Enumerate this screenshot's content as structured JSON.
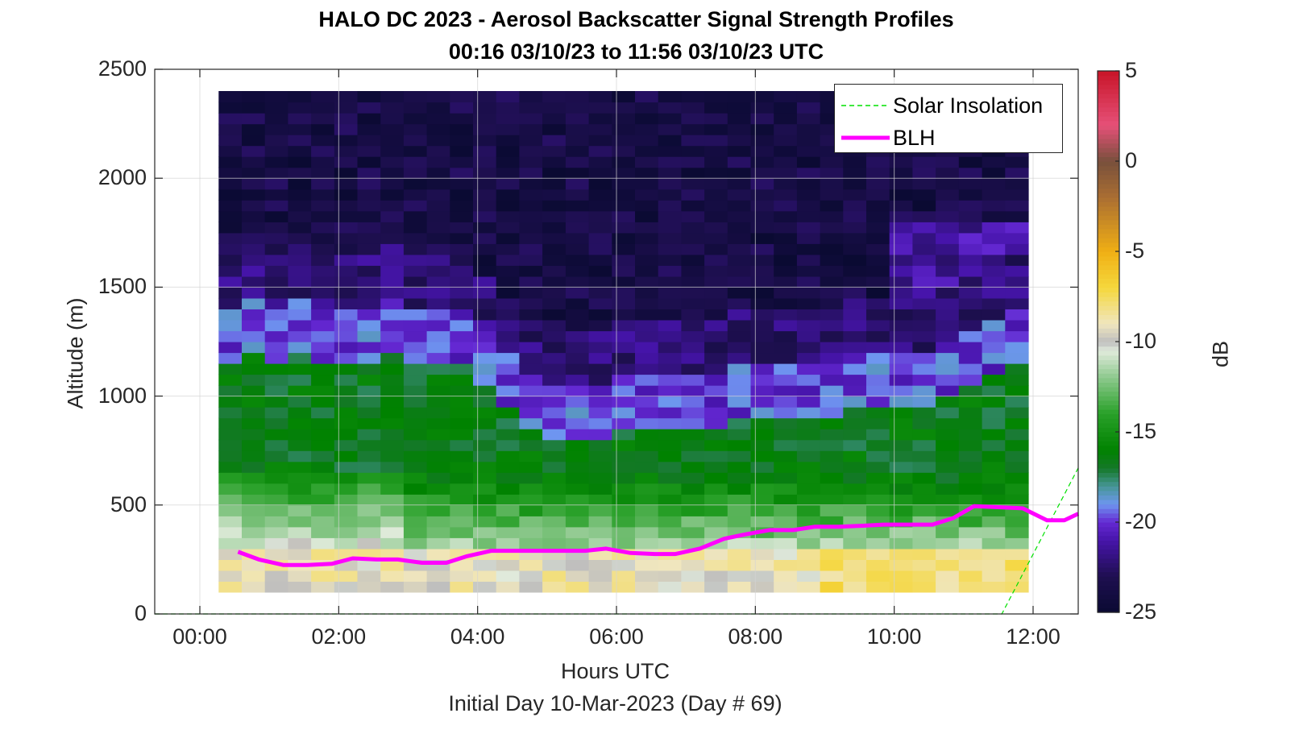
{
  "title_line1": "HALO DC 2023 - Aerosol Backscatter Signal Strength Profiles",
  "title_line2": "00:16 03/10/23 to 11:56 03/10/23  UTC",
  "xlabel": "Hours UTC",
  "footer": "Initial Day 10-Mar-2023 (Day # 69)",
  "ylabel": "Altitude (m)",
  "colorbar_label": "dB",
  "chart_data": {
    "type": "heatmap",
    "title": "HALO DC 2023 - Aerosol Backscatter Signal Strength Profiles",
    "subtitle": "00:16 03/10/23 to 11:56 03/10/23  UTC",
    "xlabel": "Hours UTC",
    "ylabel": "Altitude (m)",
    "x_range_hours": [
      -0.65,
      12.65
    ],
    "ylim": [
      0,
      2500
    ],
    "x_ticks": [
      {
        "hour": 0,
        "label": "00:00"
      },
      {
        "hour": 2,
        "label": "02:00"
      },
      {
        "hour": 4,
        "label": "04:00"
      },
      {
        "hour": 6,
        "label": "06:00"
      },
      {
        "hour": 8,
        "label": "08:00"
      },
      {
        "hour": 10,
        "label": "10:00"
      },
      {
        "hour": 12,
        "label": "12:00"
      }
    ],
    "y_ticks": [
      {
        "value": 0,
        "label": "0"
      },
      {
        "value": 500,
        "label": "500"
      },
      {
        "value": 1000,
        "label": "1000"
      },
      {
        "value": 1500,
        "label": "1500"
      },
      {
        "value": 2000,
        "label": "2000"
      },
      {
        "value": 2500,
        "label": "2500"
      }
    ],
    "grid": true,
    "data_time_range_hours": [
      0.27,
      11.93
    ],
    "colorbar": {
      "label": "dB",
      "range": [
        -25,
        5
      ],
      "ticks": [
        {
          "value": 5,
          "label": "5"
        },
        {
          "value": 0,
          "label": "0"
        },
        {
          "value": -5,
          "label": "-5"
        },
        {
          "value": -10,
          "label": "-10"
        },
        {
          "value": -15,
          "label": "-15"
        },
        {
          "value": -20,
          "label": "-20"
        },
        {
          "value": -25,
          "label": "-25"
        }
      ]
    },
    "legend": {
      "placement": "top-right",
      "entries": [
        "Solar Insolation",
        "BLH"
      ]
    },
    "series": [
      {
        "name": "BLH",
        "color": "#ff00ff",
        "x": [
          0.55,
          0.85,
          1.2,
          1.55,
          1.9,
          2.2,
          2.55,
          2.85,
          3.2,
          3.55,
          3.85,
          4.2,
          4.55,
          4.85,
          5.2,
          5.55,
          5.85,
          6.2,
          6.55,
          6.85,
          7.2,
          7.55,
          7.85,
          8.2,
          8.55,
          8.85,
          9.2,
          9.55,
          9.85,
          10.2,
          10.55,
          10.85,
          11.15,
          11.5,
          11.85,
          12.2,
          12.45,
          12.65
        ],
        "y": [
          285,
          250,
          225,
          225,
          230,
          255,
          250,
          250,
          235,
          235,
          265,
          290,
          290,
          290,
          290,
          290,
          300,
          280,
          275,
          275,
          300,
          345,
          365,
          385,
          385,
          400,
          400,
          405,
          410,
          410,
          410,
          440,
          495,
          490,
          485,
          430,
          430,
          460
        ]
      },
      {
        "name": "Solar Insolation",
        "color": "#00e000",
        "style": "dashed",
        "x": [
          -0.65,
          11.55,
          12.65
        ],
        "y": [
          0,
          0,
          670
        ]
      }
    ],
    "heatmap_rows_low_to_high_db": [
      {
        "altitude_range": [
          0,
          100
        ],
        "dominant_db": "no data"
      },
      {
        "altitude_range": [
          100,
          300
        ],
        "dominant_db": -8
      },
      {
        "altitude_range": [
          300,
          600
        ],
        "dominant_db": -12
      },
      {
        "altitude_range": [
          600,
          1200
        ],
        "dominant_db": -16
      },
      {
        "altitude_range": [
          1200,
          1500
        ],
        "dominant_db": -20
      },
      {
        "altitude_range": [
          1500,
          2500
        ],
        "dominant_db": -24
      }
    ]
  }
}
